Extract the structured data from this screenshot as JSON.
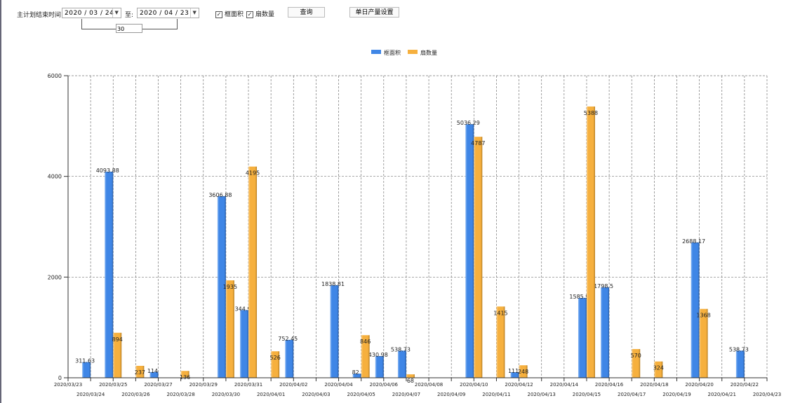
{
  "toolbar": {
    "end_time_label": "主计划结束时间:",
    "start_date": "2020 / 03 / 24",
    "to_label": "至:",
    "end_date": "2020 / 04 / 23",
    "day_span": "30",
    "checkbox_area_label": "框面积",
    "checkbox_area_checked": true,
    "checkbox_count_label": "扇数量",
    "checkbox_count_checked": true,
    "query_button": "查询",
    "daily_output_button": "单日产量设置"
  },
  "chart_data": {
    "type": "bar",
    "legend_position": "top",
    "grid": true,
    "ylim": [
      0,
      6000
    ],
    "yticks": [
      "0",
      "2000",
      "4000",
      "6000"
    ],
    "categories": [
      "2020/03/23",
      "2020/03/24",
      "2020/03/25",
      "2020/03/26",
      "2020/03/27",
      "2020/03/28",
      "2020/03/29",
      "2020/03/30",
      "2020/03/31",
      "2020/04/01",
      "2020/04/02",
      "2020/04/03",
      "2020/04/04",
      "2020/04/05",
      "2020/04/06",
      "2020/04/07",
      "2020/04/08",
      "2020/04/09",
      "2020/04/10",
      "2020/04/11",
      "2020/04/12",
      "2020/04/13",
      "2020/04/14",
      "2020/04/15",
      "2020/04/16",
      "2020/04/17",
      "2020/04/18",
      "2020/04/19",
      "2020/04/20",
      "2020/04/21",
      "2020/04/22",
      "2020/04/23"
    ],
    "series": [
      {
        "name": "框面积",
        "color": "#3f86e6",
        "values": [
          null,
          311.63,
          4093.88,
          null,
          114,
          null,
          null,
          3606.88,
          1344.95,
          null,
          752.45,
          null,
          1838.81,
          82,
          430.98,
          538.73,
          null,
          null,
          5036.29,
          null,
          111,
          null,
          null,
          1585.96,
          1798.5,
          null,
          null,
          null,
          2688.17,
          null,
          538.73,
          null
        ]
      },
      {
        "name": "扇数量",
        "color": "#f6b03e",
        "values": [
          null,
          null,
          894,
          237,
          null,
          136,
          null,
          1935,
          4195,
          526,
          null,
          null,
          null,
          846,
          null,
          68,
          null,
          null,
          4787,
          1415,
          248,
          null,
          null,
          5388,
          null,
          570,
          324,
          null,
          1368,
          null,
          null,
          null
        ]
      }
    ]
  }
}
